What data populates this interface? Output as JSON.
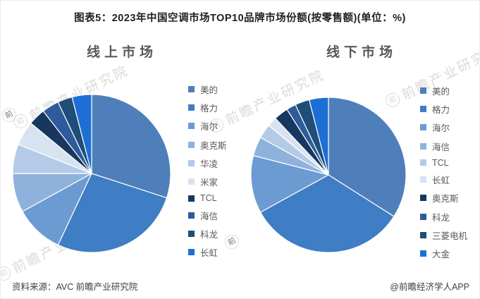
{
  "page": {
    "title": "图表5：2023年中国空调市场TOP10品牌市场份额(按零售额)(单位：%)",
    "source": "资料来源：AVC 前瞻产业研究院",
    "credit": "@前瞻经济学人APP",
    "watermark": "前瞻产业研究院",
    "watermark_symbol": "前"
  },
  "chart_data": [
    {
      "type": "pie",
      "title": "线上市场",
      "unit": "%",
      "legend_position": "right",
      "labels": [
        "美的",
        "格力",
        "海尔",
        "奥克斯",
        "华凌",
        "米家",
        "TCL",
        "海信",
        "科龙",
        "长虹"
      ],
      "values": [
        30,
        27,
        10,
        8,
        6,
        5,
        3.5,
        3.5,
        3,
        4
      ],
      "colors": [
        "#4e7fba",
        "#3f7dc4",
        "#6c9bd2",
        "#8fb2dc",
        "#b4cbe8",
        "#d8e3f2",
        "#17375e",
        "#2e5b9c",
        "#1f4e79",
        "#1d6fd5"
      ]
    },
    {
      "type": "pie",
      "title": "线下市场",
      "unit": "%",
      "legend_position": "right",
      "labels": [
        "美的",
        "格力",
        "海尔",
        "海信",
        "TCL",
        "长虹",
        "奥克斯",
        "科龙",
        "三菱电机",
        "大金"
      ],
      "values": [
        34,
        33,
        12,
        4,
        3,
        2,
        3,
        2,
        3,
        4
      ],
      "colors": [
        "#4e7fba",
        "#3f7dc4",
        "#6c9bd2",
        "#8fb2dc",
        "#b4cbe8",
        "#d8e3f2",
        "#17375e",
        "#2e5b9c",
        "#1f4e79",
        "#1d6fd5"
      ]
    }
  ]
}
